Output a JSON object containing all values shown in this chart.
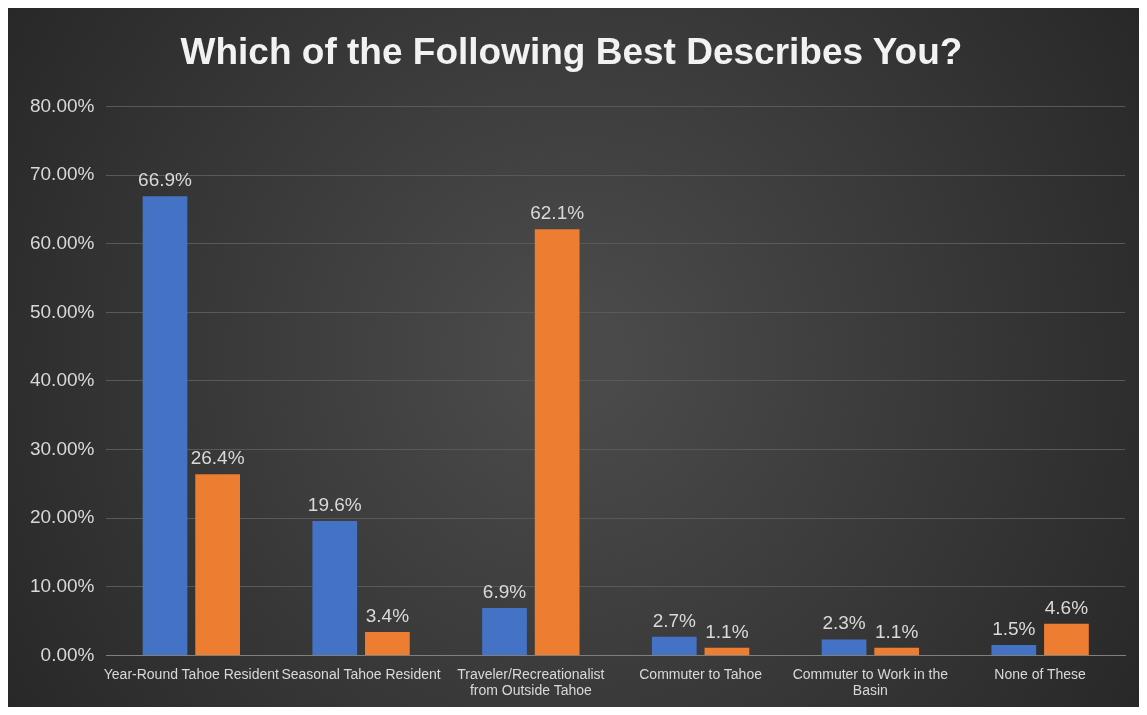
{
  "chart_data": {
    "type": "bar",
    "title": "Which of the Following Best Describes You?",
    "categories": [
      "Year-Round Tahoe Resident",
      "Seasonal Tahoe Resident",
      "Traveler/Recreationalist from Outside Tahoe",
      "Commuter to Tahoe",
      "Commuter to Work in the Basin",
      "None of These"
    ],
    "series": [
      {
        "color": "#4472c4",
        "values": [
          66.9,
          19.6,
          6.9,
          2.7,
          2.3,
          1.5
        ],
        "value_labels": [
          "66.9%",
          "19.6%",
          "6.9%",
          "2.7%",
          "2.3%",
          "1.5%"
        ]
      },
      {
        "color": "#ed7d31",
        "values": [
          26.4,
          3.4,
          62.1,
          1.1,
          1.1,
          4.6
        ],
        "value_labels": [
          "26.4%",
          "3.4%",
          "62.1%",
          "1.1%",
          "1.1%",
          "4.6%"
        ]
      }
    ],
    "ylim": [
      0,
      80
    ],
    "yticks": [
      {
        "value": 0,
        "label": "0.00%"
      },
      {
        "value": 10,
        "label": "10.00%"
      },
      {
        "value": 20,
        "label": "20.00%"
      },
      {
        "value": 30,
        "label": "30.00%"
      },
      {
        "value": 40,
        "label": "40.00%"
      },
      {
        "value": 50,
        "label": "50.00%"
      },
      {
        "value": 60,
        "label": "60.00%"
      },
      {
        "value": 70,
        "label": "70.00%"
      },
      {
        "value": 80,
        "label": "80.00%"
      }
    ],
    "grid": "y",
    "legend": false
  }
}
